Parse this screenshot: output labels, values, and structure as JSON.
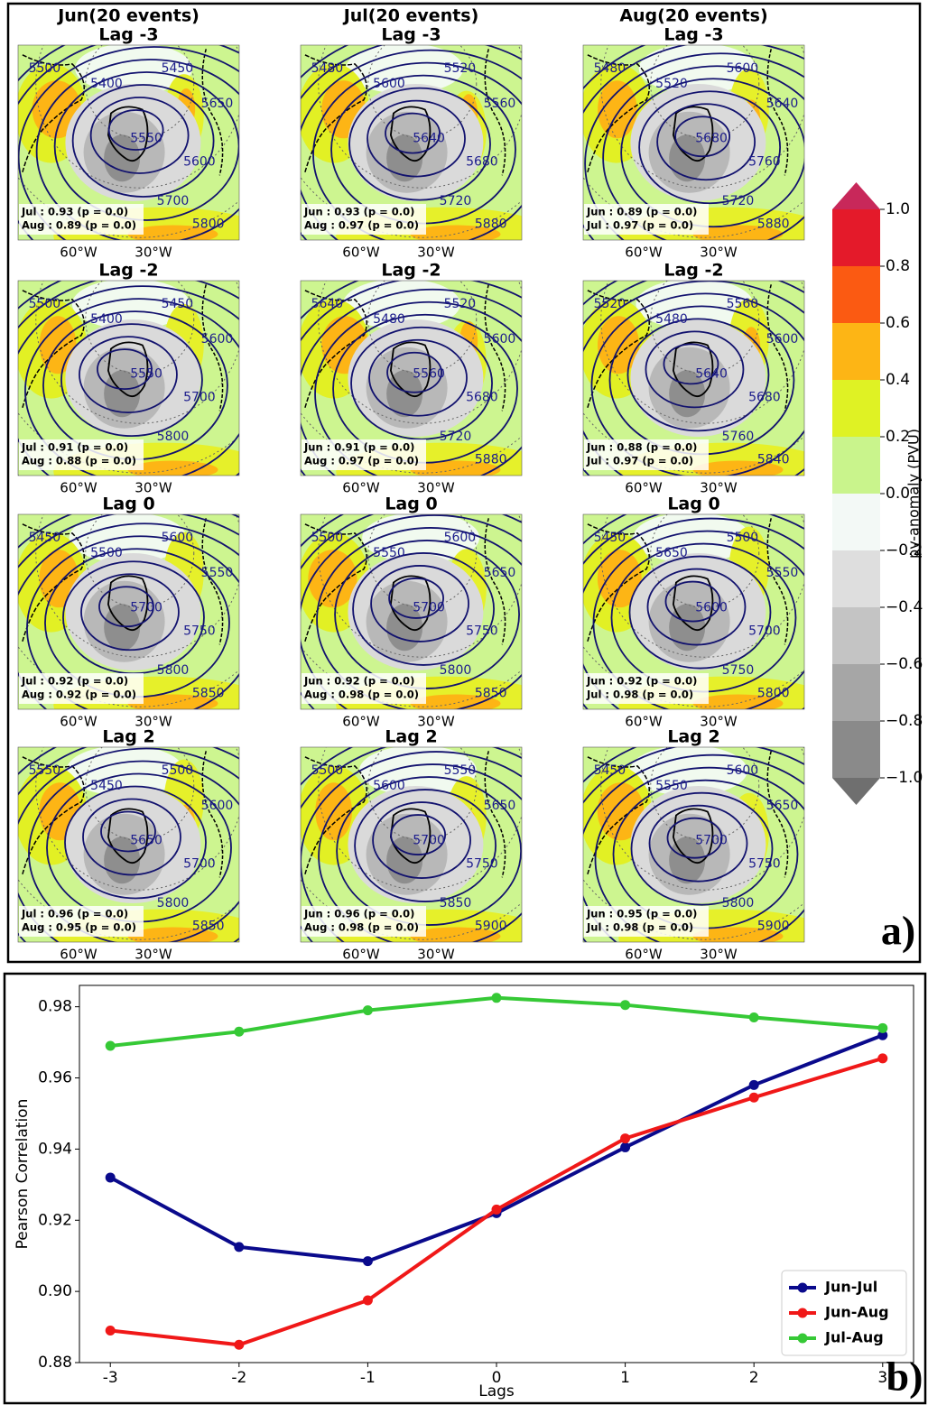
{
  "panel_a": {
    "columns": [
      {
        "title": "Jun(20 events)",
        "maps": [
          {
            "lag": "Lag -3",
            "stats": [
              "Jul : 0.93 (p = 0.0)",
              "Aug : 0.89 (p = 0.0)"
            ],
            "contours": [
              "5500",
              "5400",
              "5450",
              "5650",
              "5550",
              "5600",
              "5700",
              "5800"
            ]
          },
          {
            "lag": "Lag -2",
            "stats": [
              "Jul : 0.91 (p = 0.0)",
              "Aug : 0.88 (p = 0.0)"
            ],
            "contours": [
              "5500",
              "5400",
              "5450",
              "5600",
              "5550",
              "5700",
              "5800"
            ]
          },
          {
            "lag": "Lag 0",
            "stats": [
              "Jul : 0.92 (p = 0.0)",
              "Aug : 0.92 (p = 0.0)"
            ],
            "contours": [
              "5450",
              "5500",
              "5600",
              "5550",
              "5700",
              "5750",
              "5800",
              "5850"
            ]
          },
          {
            "lag": "Lag 2",
            "stats": [
              "Jul : 0.96 (p = 0.0)",
              "Aug : 0.95 (p = 0.0)"
            ],
            "contours": [
              "5550",
              "5450",
              "5500",
              "5600",
              "5650",
              "5700",
              "5800",
              "5850"
            ]
          }
        ]
      },
      {
        "title": "Jul(20 events)",
        "maps": [
          {
            "lag": "Lag -3",
            "stats": [
              "Jun : 0.93 (p = 0.0)",
              "Aug : 0.97 (p = 0.0)"
            ],
            "contours": [
              "5480",
              "5600",
              "5520",
              "5560",
              "5640",
              "5680",
              "5720",
              "5880"
            ]
          },
          {
            "lag": "Lag -2",
            "stats": [
              "Jun : 0.91 (p = 0.0)",
              "Aug : 0.97 (p = 0.0)"
            ],
            "contours": [
              "5640",
              "5480",
              "5520",
              "5600",
              "5560",
              "5680",
              "5720",
              "5880"
            ]
          },
          {
            "lag": "Lag 0",
            "stats": [
              "Jun : 0.92 (p = 0.0)",
              "Aug : 0.98 (p = 0.0)"
            ],
            "contours": [
              "5500",
              "5550",
              "5600",
              "5650",
              "5700",
              "5750",
              "5800",
              "5850"
            ]
          },
          {
            "lag": "Lag 2",
            "stats": [
              "Jun : 0.96 (p = 0.0)",
              "Aug : 0.98 (p = 0.0)"
            ],
            "contours": [
              "5500",
              "5600",
              "5550",
              "5650",
              "5700",
              "5750",
              "5850",
              "5900"
            ]
          }
        ]
      },
      {
        "title": "Aug(20 events)",
        "maps": [
          {
            "lag": "Lag -3",
            "stats": [
              "Jun : 0.89 (p = 0.0)",
              "Jul : 0.97 (p = 0.0)"
            ],
            "contours": [
              "5480",
              "5520",
              "5600",
              "5640",
              "5680",
              "5760",
              "5720",
              "5880"
            ]
          },
          {
            "lag": "Lag -2",
            "stats": [
              "Jun : 0.88 (p = 0.0)",
              "Jul : 0.97 (p = 0.0)"
            ],
            "contours": [
              "5520",
              "5480",
              "5560",
              "5600",
              "5640",
              "5680",
              "5760",
              "5840"
            ]
          },
          {
            "lag": "Lag 0",
            "stats": [
              "Jun : 0.92 (p = 0.0)",
              "Jul : 0.98 (p = 0.0)"
            ],
            "contours": [
              "5450",
              "5650",
              "5500",
              "5550",
              "5600",
              "5700",
              "5750",
              "5800"
            ]
          },
          {
            "lag": "Lag 2",
            "stats": [
              "Jun : 0.95 (p = 0.0)",
              "Jul : 0.98 (p = 0.0)"
            ],
            "contours": [
              "5450",
              "5550",
              "5600",
              "5650",
              "5700",
              "5750",
              "5800",
              "5900"
            ]
          }
        ]
      }
    ],
    "lon_labels": [
      "60°W",
      "30°W"
    ],
    "colorbar": {
      "label": "pv-anomaly (PVU)",
      "ticks": [
        {
          "value": -1.0,
          "label": "−1.0"
        },
        {
          "value": -0.8,
          "label": "−0.8"
        },
        {
          "value": -0.6,
          "label": "−0.6"
        },
        {
          "value": -0.4,
          "label": "−0.4"
        },
        {
          "value": -0.2,
          "label": "−0.2"
        },
        {
          "value": 0.0,
          "label": "0.0"
        },
        0.2,
        0.4,
        0.6,
        0.8,
        {
          "value": 1.0,
          "label": "1.0"
        }
      ],
      "colors": [
        "#8a8a8a",
        "#a6a6a6",
        "#c4c4c4",
        "#dedede",
        "#f3f9f6",
        "#c9f48c",
        "#dff224",
        "#fdb515",
        "#fb5a12",
        "#e41a2a"
      ],
      "extend_colors": [
        "#6f6f6f",
        "#c8285a"
      ]
    },
    "panel_label": "a)"
  },
  "chart_data": {
    "type": "line",
    "x": [
      -3,
      -2,
      -1,
      0,
      1,
      2,
      3
    ],
    "xlabel": "Lags",
    "ylabel": "Pearson Correlation",
    "series": [
      {
        "name": "Jun-Jul",
        "color": "#0a0a8c",
        "values": [
          0.932,
          0.9125,
          0.9085,
          0.922,
          0.9405,
          0.958,
          0.972
        ]
      },
      {
        "name": "Jun-Aug",
        "color": "#f01818",
        "values": [
          0.889,
          0.885,
          0.8975,
          0.923,
          0.943,
          0.9545,
          0.9655
        ]
      },
      {
        "name": "Jul-Aug",
        "color": "#36c936",
        "values": [
          0.969,
          0.973,
          0.979,
          0.9825,
          0.9805,
          0.977,
          0.974
        ]
      }
    ],
    "xlim": [
      -3.24,
      3.24
    ],
    "ylim": [
      0.88,
      0.986
    ],
    "xticks": [
      -3,
      -2,
      -1,
      0,
      1,
      2,
      3
    ],
    "yticks": [
      0.88,
      {
        "value": 0.9,
        "label": "0.90"
      },
      0.92,
      0.94,
      0.96,
      0.98
    ],
    "legend": "lower right"
  },
  "panel_b_label": "b)"
}
